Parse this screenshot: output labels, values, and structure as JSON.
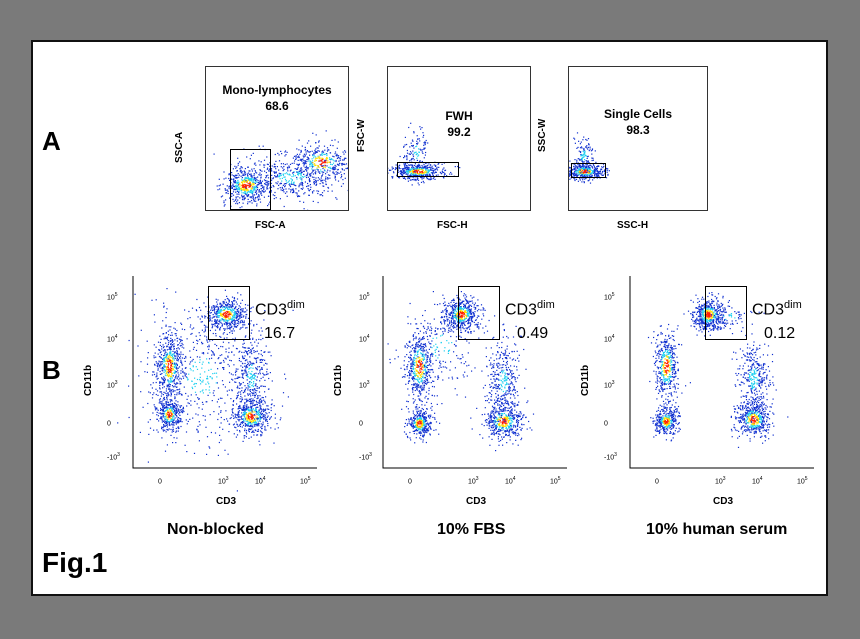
{
  "panel_labels": {
    "a": "A",
    "b": "B"
  },
  "figure_label": "Fig.1",
  "panel_a": [
    {
      "gate_name": "Mono-lymphocytes",
      "percent": "68.6",
      "y_label": "SSC-A",
      "x_label": "FSC-A"
    },
    {
      "gate_name": "FWH",
      "percent": "99.2",
      "y_label": "FSC-W",
      "x_label": "FSC-H"
    },
    {
      "gate_name": "Single Cells",
      "percent": "98.3",
      "y_label": "SSC-W",
      "x_label": "SSC-H"
    }
  ],
  "panel_b": [
    {
      "gate_main": "CD3",
      "gate_sup": "dim",
      "percent": "16.7",
      "y_label": "CD11b",
      "x_label": "CD3",
      "condition": "Non-blocked"
    },
    {
      "gate_main": "CD3",
      "gate_sup": "dim",
      "percent": "0.49",
      "y_label": "CD11b",
      "x_label": "CD3",
      "condition": "10% FBS"
    },
    {
      "gate_main": "CD3",
      "gate_sup": "dim",
      "percent": "0.12",
      "y_label": "CD11b",
      "x_label": "CD3",
      "condition": "10% human serum"
    }
  ],
  "ticks": {
    "y": [
      {
        "base": "10",
        "exp": "5"
      },
      {
        "base": "10",
        "exp": "4"
      },
      {
        "base": "10",
        "exp": "3"
      },
      {
        "base": "0",
        "exp": ""
      },
      {
        "base": "-10",
        "exp": "3"
      }
    ],
    "x": [
      {
        "base": "0",
        "exp": ""
      },
      {
        "base": "10",
        "exp": "3"
      },
      {
        "base": "10",
        "exp": "4"
      },
      {
        "base": "10",
        "exp": "5"
      }
    ]
  },
  "colors": {
    "background": "#7a7a7a",
    "figure_bg": "#ffffff",
    "dots_low": "#1030d0",
    "dots_mid": "#20d0f0",
    "dots_high": "#ffe000",
    "dots_peak": "#ff2000"
  }
}
